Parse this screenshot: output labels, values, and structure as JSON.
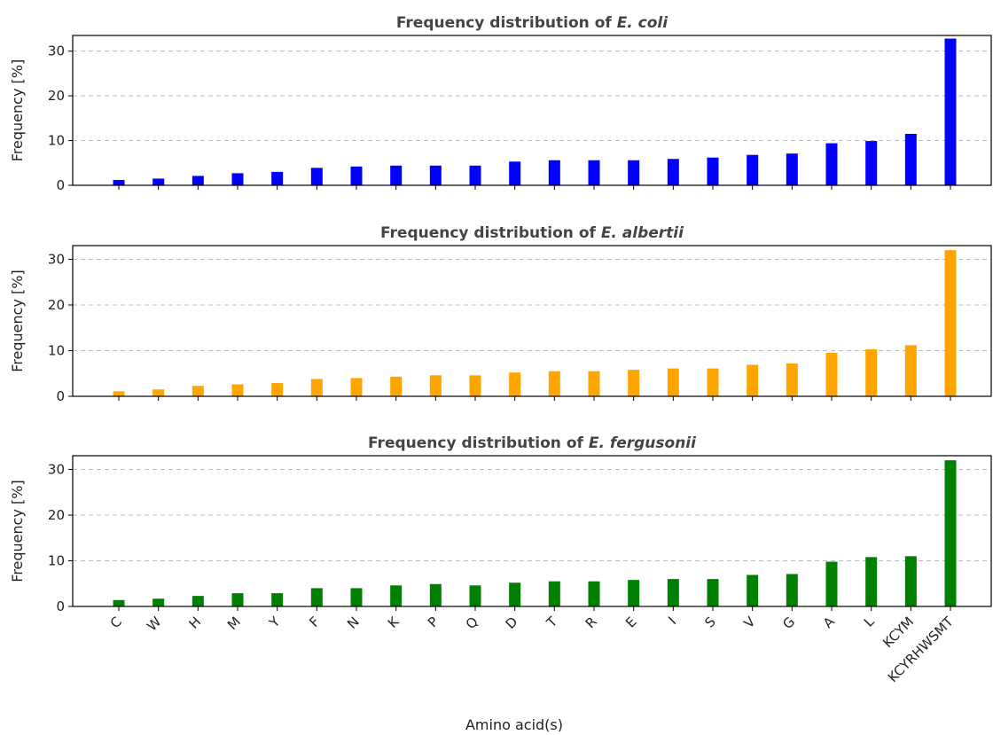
{
  "chart_data": [
    {
      "type": "bar",
      "title_prefix": "Frequency distribution of ",
      "title_species": "E. coli",
      "ylabel": "Frequency [%]",
      "xlabel": "",
      "ylim": [
        0,
        33.5
      ],
      "yticks": [
        0,
        10,
        20,
        30
      ],
      "grid": true,
      "color": "#0000ff",
      "categories": [
        "C",
        "W",
        "H",
        "M",
        "Y",
        "F",
        "N",
        "K",
        "P",
        "Q",
        "D",
        "T",
        "R",
        "E",
        "I",
        "S",
        "V",
        "G",
        "A",
        "L",
        "KCYM",
        "KCYRHWSMT"
      ],
      "values": [
        1.2,
        1.5,
        2.1,
        2.7,
        3.0,
        3.9,
        4.2,
        4.4,
        4.4,
        4.4,
        5.3,
        5.6,
        5.6,
        5.6,
        5.9,
        6.2,
        6.8,
        7.1,
        9.4,
        9.9,
        11.5,
        32.8
      ]
    },
    {
      "type": "bar",
      "title_prefix": "Frequency distribution of ",
      "title_species": "E. albertii",
      "ylabel": "Frequency [%]",
      "xlabel": "",
      "ylim": [
        0,
        33.0
      ],
      "yticks": [
        0,
        10,
        20,
        30
      ],
      "grid": true,
      "color": "#ffa500",
      "categories": [
        "C",
        "W",
        "H",
        "M",
        "Y",
        "F",
        "N",
        "K",
        "P",
        "Q",
        "D",
        "T",
        "R",
        "E",
        "I",
        "S",
        "V",
        "G",
        "A",
        "L",
        "KCYM",
        "KCYRHWSMT"
      ],
      "values": [
        1.1,
        1.5,
        2.3,
        2.6,
        2.9,
        3.8,
        4.0,
        4.3,
        4.6,
        4.6,
        5.2,
        5.5,
        5.5,
        5.8,
        6.1,
        6.1,
        6.9,
        7.2,
        9.5,
        10.3,
        11.2,
        32.0
      ]
    },
    {
      "type": "bar",
      "title_prefix": "Frequency distribution of ",
      "title_species": "E. fergusonii",
      "ylabel": "Frequency [%]",
      "xlabel": "Amino acid(s)",
      "ylim": [
        0,
        33.0
      ],
      "yticks": [
        0,
        10,
        20,
        30
      ],
      "grid": true,
      "color": "#008000",
      "categories": [
        "C",
        "W",
        "H",
        "M",
        "Y",
        "F",
        "N",
        "K",
        "P",
        "Q",
        "D",
        "T",
        "R",
        "E",
        "I",
        "S",
        "V",
        "G",
        "A",
        "L",
        "KCYM",
        "KCYRHWSMT"
      ],
      "values": [
        1.4,
        1.7,
        2.3,
        2.9,
        2.9,
        4.0,
        4.0,
        4.6,
        4.9,
        4.6,
        5.2,
        5.5,
        5.5,
        5.8,
        6.0,
        6.0,
        6.9,
        7.1,
        9.8,
        10.8,
        11.0,
        32.0
      ]
    }
  ]
}
